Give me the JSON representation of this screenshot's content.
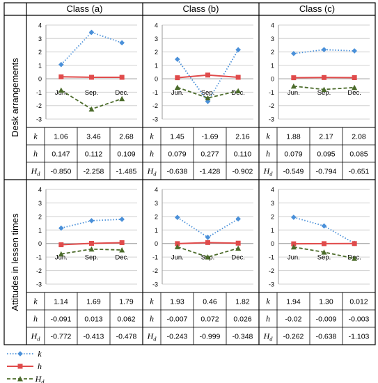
{
  "figure": {
    "columns": [
      "Class (a)",
      "Class (b)",
      "Class (c)"
    ],
    "rows": [
      "Desk arrangements",
      "Attitudes in lessen times"
    ],
    "legend": [
      {
        "symbol": "k",
        "color": "#4a90d9",
        "marker": "diamond",
        "line": "dotted"
      },
      {
        "symbol": "h",
        "color": "#e04b4b",
        "marker": "square",
        "line": "solid"
      },
      {
        "symbol": "H",
        "subscript": "d",
        "color": "#4b6b2a",
        "marker": "triangle",
        "line": "dashed"
      }
    ]
  },
  "chart_data": [
    {
      "type": "line",
      "row": "Desk arrangements",
      "column": "Class (a)",
      "categories": [
        "Jun.",
        "Sep.",
        "Dec."
      ],
      "ylim": [
        -3,
        4
      ],
      "yticks": [
        -3,
        -2,
        -1,
        0,
        1,
        2,
        3,
        4
      ],
      "grid": true,
      "series": [
        {
          "name": "k",
          "values": [
            1.06,
            3.46,
            2.68
          ]
        },
        {
          "name": "h",
          "values": [
            0.147,
            0.112,
            0.109
          ]
        },
        {
          "name": "Hd",
          "values": [
            -0.85,
            -2.258,
            -1.485
          ]
        }
      ],
      "table": {
        "k": [
          "1.06",
          "3.46",
          "2.68"
        ],
        "h": [
          "0.147",
          "0.112",
          "0.109"
        ],
        "Hd": [
          "-0.850",
          "-2.258",
          "-1.485"
        ]
      }
    },
    {
      "type": "line",
      "row": "Desk arrangements",
      "column": "Class (b)",
      "categories": [
        "Jun.",
        "Sep.",
        "Dec."
      ],
      "ylim": [
        -3,
        4
      ],
      "yticks": [
        -3,
        -2,
        -1,
        0,
        1,
        2,
        3,
        4
      ],
      "grid": true,
      "series": [
        {
          "name": "k",
          "values": [
            1.45,
            -1.69,
            2.16
          ]
        },
        {
          "name": "h",
          "values": [
            0.079,
            0.277,
            0.11
          ]
        },
        {
          "name": "Hd",
          "values": [
            -0.638,
            -1.428,
            -0.902
          ]
        }
      ],
      "table": {
        "k": [
          "1.45",
          "-1.69",
          "2.16"
        ],
        "h": [
          "0.079",
          "0.277",
          "0.110"
        ],
        "Hd": [
          "-0.638",
          "-1.428",
          "-0.902"
        ]
      }
    },
    {
      "type": "line",
      "row": "Desk arrangements",
      "column": "Class (c)",
      "categories": [
        "Jun.",
        "Sep.",
        "Dec."
      ],
      "ylim": [
        -3,
        4
      ],
      "yticks": [
        -3,
        -2,
        -1,
        0,
        1,
        2,
        3,
        4
      ],
      "grid": true,
      "series": [
        {
          "name": "k",
          "values": [
            1.88,
            2.17,
            2.08
          ]
        },
        {
          "name": "h",
          "values": [
            0.079,
            0.095,
            0.085
          ]
        },
        {
          "name": "Hd",
          "values": [
            -0.549,
            -0.794,
            -0.651
          ]
        }
      ],
      "table": {
        "k": [
          "1.88",
          "2.17",
          "2.08"
        ],
        "h": [
          "0.079",
          "0.095",
          "0.085"
        ],
        "Hd": [
          "-0.549",
          "-0.794",
          "-0.651"
        ]
      }
    },
    {
      "type": "line",
      "row": "Attitudes in lessen times",
      "column": "Class (a)",
      "categories": [
        "Jun.",
        "Sep.",
        "Dec."
      ],
      "ylim": [
        -3,
        4
      ],
      "yticks": [
        -3,
        -2,
        -1,
        0,
        1,
        2,
        3,
        4
      ],
      "grid": true,
      "series": [
        {
          "name": "k",
          "values": [
            1.14,
            1.69,
            1.79
          ]
        },
        {
          "name": "h",
          "values": [
            -0.091,
            0.013,
            0.062
          ]
        },
        {
          "name": "Hd",
          "values": [
            -0.772,
            -0.413,
            -0.478
          ]
        }
      ],
      "table": {
        "k": [
          "1.14",
          "1.69",
          "1.79"
        ],
        "h": [
          "-0.091",
          "0.013",
          "0.062"
        ],
        "Hd": [
          "-0.772",
          "-0.413",
          "-0.478"
        ]
      }
    },
    {
      "type": "line",
      "row": "Attitudes in lessen times",
      "column": "Class (b)",
      "categories": [
        "Jun.",
        "Sep.",
        "Dec."
      ],
      "ylim": [
        -3,
        4
      ],
      "yticks": [
        -3,
        -2,
        -1,
        0,
        1,
        2,
        3,
        4
      ],
      "grid": true,
      "series": [
        {
          "name": "k",
          "values": [
            1.93,
            0.46,
            1.82
          ]
        },
        {
          "name": "h",
          "values": [
            -0.007,
            0.072,
            0.026
          ]
        },
        {
          "name": "Hd",
          "values": [
            -0.243,
            -0.999,
            -0.348
          ]
        }
      ],
      "table": {
        "k": [
          "1.93",
          "0.46",
          "1.82"
        ],
        "h": [
          "-0.007",
          "0.072",
          "0.026"
        ],
        "Hd": [
          "-0.243",
          "-0.999",
          "-0.348"
        ]
      }
    },
    {
      "type": "line",
      "row": "Attitudes in lessen times",
      "column": "Class (c)",
      "categories": [
        "Jun.",
        "Sep.",
        "Dec."
      ],
      "ylim": [
        -3,
        4
      ],
      "yticks": [
        -3,
        -2,
        -1,
        0,
        1,
        2,
        3,
        4
      ],
      "grid": true,
      "series": [
        {
          "name": "k",
          "values": [
            1.94,
            1.3,
            0.012
          ]
        },
        {
          "name": "h",
          "values": [
            -0.02,
            -0.009,
            -0.003
          ]
        },
        {
          "name": "Hd",
          "values": [
            -0.262,
            -0.638,
            -1.103
          ]
        }
      ],
      "table": {
        "k": [
          "1.94",
          "1.30",
          "0.012"
        ],
        "h": [
          "-0.02",
          "-0.009",
          "-0.003"
        ],
        "Hd": [
          "-0.262",
          "-0.638",
          "-1.103"
        ]
      }
    }
  ]
}
